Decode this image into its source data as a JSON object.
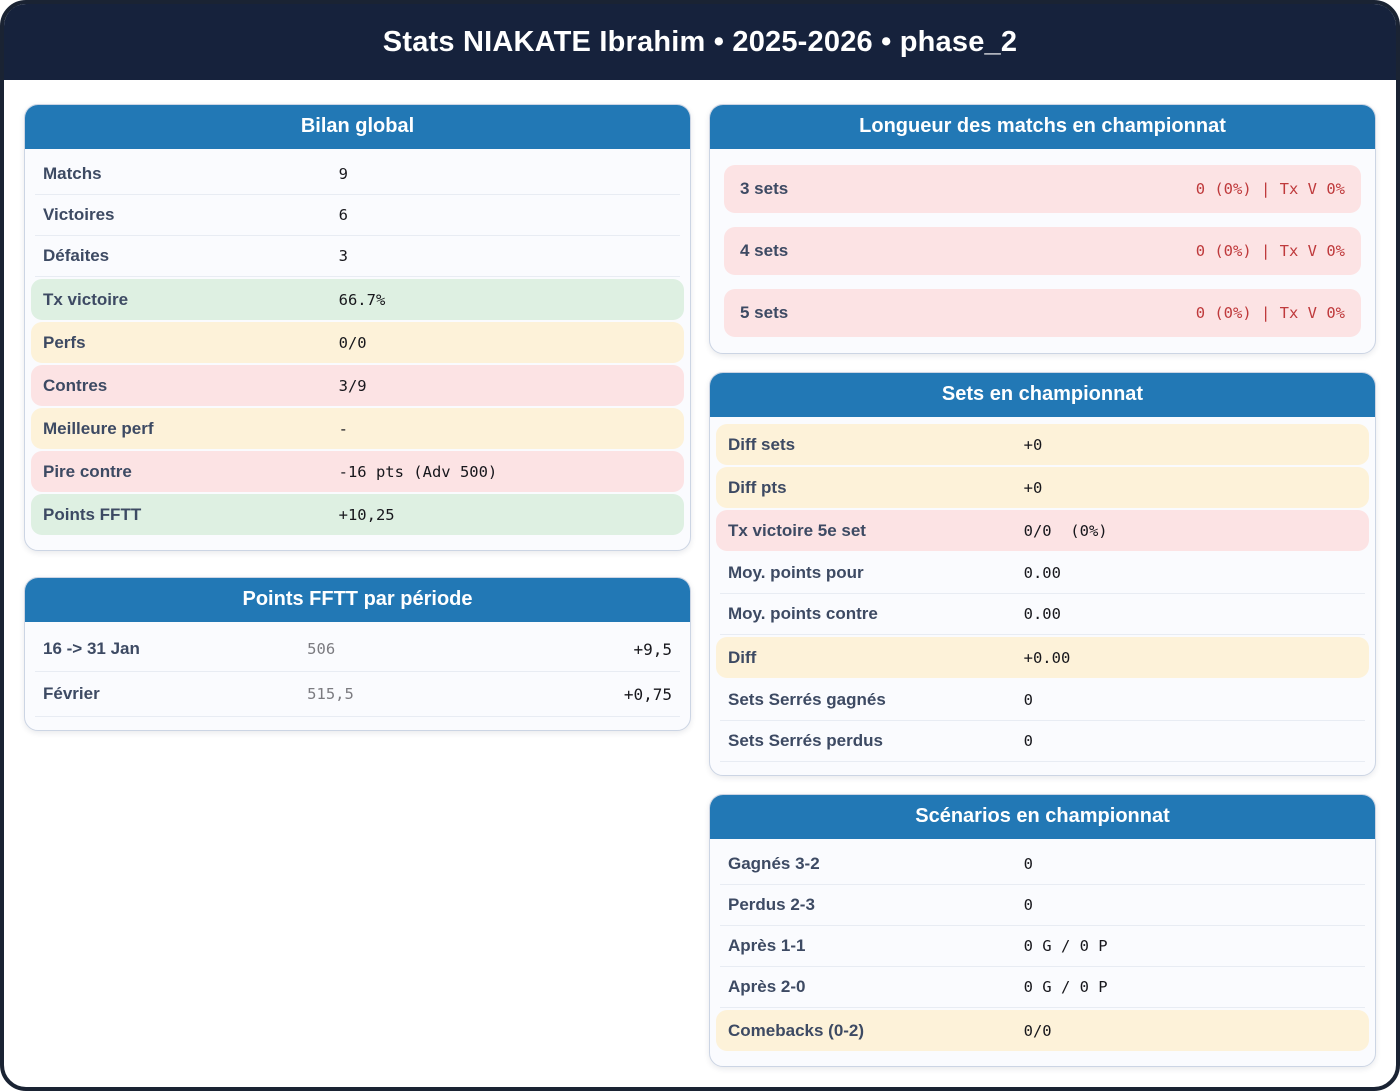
{
  "page": {
    "title": "Stats NIAKATE Ibrahim • 2025-2026 • phase_2"
  },
  "colors": {
    "header_navy": "#16223c",
    "card_header_blue": "#2278b5",
    "row_green": "#def0e2",
    "row_yellow": "#fdf2d9",
    "row_pink": "#fce3e4",
    "alert_red_text": "#bf3a3c",
    "label_slate": "#3d4a63"
  },
  "cards": {
    "bilan": {
      "title": "Bilan global",
      "rows": [
        {
          "label": "Matchs",
          "value": "9"
        },
        {
          "label": "Victoires",
          "value": "6"
        },
        {
          "label": "Défaites",
          "value": "3"
        },
        {
          "label": "Tx victoire",
          "value": "66.7%"
        },
        {
          "label": "Perfs",
          "value": "0/0"
        },
        {
          "label": "Contres",
          "value": "3/9"
        },
        {
          "label": "Meilleure perf",
          "value": "-"
        },
        {
          "label": "Pire contre",
          "value": "-16 pts (Adv 500)"
        },
        {
          "label": "Points FFTT",
          "value": "+10,25"
        }
      ]
    },
    "periodes": {
      "title": "Points FFTT par période",
      "rows": [
        {
          "label": "16 -> 31 Jan",
          "points": "506",
          "delta": "+9,5"
        },
        {
          "label": "Février",
          "points": "515,5",
          "delta": "+0,75"
        }
      ]
    },
    "longueur": {
      "title": "Longueur des matchs en championnat",
      "rows": [
        {
          "label": "3 sets",
          "value": "0 (0%) | Tx V 0%"
        },
        {
          "label": "4 sets",
          "value": "0 (0%) | Tx V 0%"
        },
        {
          "label": "5 sets",
          "value": "0 (0%) | Tx V 0%"
        }
      ]
    },
    "sets": {
      "title": "Sets en championnat",
      "rows": [
        {
          "label": "Diff sets",
          "value": "+0"
        },
        {
          "label": "Diff pts",
          "value": "+0"
        },
        {
          "label": "Tx victoire 5e set",
          "value": "0/0  (0%)"
        },
        {
          "label": "Moy. points pour",
          "value": "0.00"
        },
        {
          "label": "Moy. points contre",
          "value": "0.00"
        },
        {
          "label": "Diff",
          "value": "+0.00"
        },
        {
          "label": "Sets Serrés gagnés",
          "value": "0"
        },
        {
          "label": "Sets Serrés perdus",
          "value": "0"
        }
      ]
    },
    "scenarios": {
      "title": "Scénarios en championnat",
      "rows": [
        {
          "label": "Gagnés 3-2",
          "value": "0"
        },
        {
          "label": "Perdus 2-3",
          "value": "0"
        },
        {
          "label": "Après 1-1",
          "value": "0 G / 0 P"
        },
        {
          "label": "Après 2-0",
          "value": "0 G / 0 P"
        },
        {
          "label": "Comebacks (0-2)",
          "value": "0/0"
        }
      ]
    }
  }
}
